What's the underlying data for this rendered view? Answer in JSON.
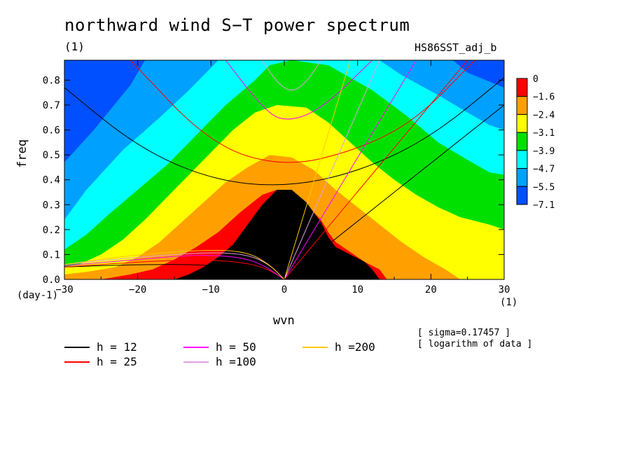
{
  "title": "northward wind S−T power spectrum",
  "title_unit": "(1)",
  "run_id": "HS86SST_adj_b",
  "notes": [
    "[ sigma=0.17457 ]",
    "[ logarithm of data ]"
  ],
  "colors": {
    "fill_levels": [
      "#0050ff",
      "#00a0ff",
      "#00ffff",
      "#00e000",
      "#ffff00",
      "#ffa000",
      "#ff0000"
    ],
    "h12": "#000000",
    "h25": "#ff0000",
    "h50": "#ff00ff",
    "h100": "#e0a0e0",
    "h200": "#ffc800"
  },
  "chart_data": {
    "type": "heatmap",
    "title": "northward wind S−T power spectrum",
    "xlabel": "wvn",
    "ylabel": "freq",
    "x_unit": "(1)",
    "y_unit": "(day-1)",
    "xlim": [
      -30,
      30
    ],
    "ylim": [
      0,
      0.88
    ],
    "x_ticks": [
      -30,
      -20,
      -10,
      0,
      10,
      20,
      30
    ],
    "x_tick_labels": [
      "−30",
      "−20",
      "−10",
      "0",
      "10",
      "20",
      "30"
    ],
    "y_ticks": [
      0.0,
      0.1,
      0.2,
      0.3,
      0.4,
      0.5,
      0.6,
      0.7,
      0.8
    ],
    "y_tick_labels": [
      "0.0",
      "0.1",
      "0.2",
      "0.3",
      "0.4",
      "0.5",
      "0.6",
      "0.7",
      "0.8"
    ],
    "colorbar": {
      "levels": [
        "0",
        "−1.6",
        "−2.4",
        "−3.1",
        "−3.9",
        "−4.7",
        "−5.5",
        "−7.1"
      ],
      "colors": [
        "#ff0000",
        "#ffa000",
        "#ffff00",
        "#00e000",
        "#00ffff",
        "#00a0ff",
        "#0050ff"
      ]
    },
    "field_contours": [
      {
        "level": "−5.5",
        "points": [
          [
            -30,
            0.47
          ],
          [
            -26,
            0.6
          ],
          [
            -21,
            0.78
          ],
          [
            -19,
            0.88
          ],
          [
            23,
            0.88
          ],
          [
            25,
            0.83
          ],
          [
            30,
            0.77
          ]
        ]
      },
      {
        "level": "−4.7",
        "points": [
          [
            -30,
            0.24
          ],
          [
            -27,
            0.36
          ],
          [
            -22,
            0.52
          ],
          [
            -17,
            0.65
          ],
          [
            -13,
            0.76
          ],
          [
            -11,
            0.82
          ],
          [
            -9,
            0.88
          ],
          [
            13,
            0.88
          ],
          [
            16,
            0.82
          ],
          [
            21,
            0.74
          ],
          [
            25,
            0.67
          ],
          [
            28,
            0.62
          ],
          [
            30,
            0.6
          ]
        ]
      },
      {
        "level": "−3.9",
        "points": [
          [
            -30,
            0.12
          ],
          [
            -27,
            0.18
          ],
          [
            -24,
            0.26
          ],
          [
            -20,
            0.36
          ],
          [
            -16,
            0.46
          ],
          [
            -12,
            0.58
          ],
          [
            -8,
            0.7
          ],
          [
            -4,
            0.8
          ],
          [
            -2,
            0.86
          ],
          [
            1,
            0.88
          ],
          [
            6,
            0.86
          ],
          [
            12,
            0.76
          ],
          [
            17,
            0.65
          ],
          [
            21,
            0.55
          ],
          [
            25,
            0.48
          ],
          [
            28,
            0.43
          ],
          [
            30,
            0.42
          ]
        ]
      },
      {
        "level": "−3.1",
        "points": [
          [
            -30,
            0.05
          ],
          [
            -28,
            0.06
          ],
          [
            -25,
            0.1
          ],
          [
            -22,
            0.16
          ],
          [
            -19,
            0.24
          ],
          [
            -16,
            0.33
          ],
          [
            -13,
            0.42
          ],
          [
            -10,
            0.51
          ],
          [
            -7,
            0.6
          ],
          [
            -4,
            0.67
          ],
          [
            -1,
            0.7
          ],
          [
            3,
            0.69
          ],
          [
            6,
            0.63
          ],
          [
            9,
            0.55
          ],
          [
            12,
            0.47
          ],
          [
            15,
            0.4
          ],
          [
            18,
            0.34
          ],
          [
            21,
            0.29
          ],
          [
            24,
            0.25
          ],
          [
            28,
            0.22
          ],
          [
            30,
            0.2
          ]
        ]
      },
      {
        "level": "−2.4",
        "points": [
          [
            -30,
            0.02
          ],
          [
            -27,
            0.03
          ],
          [
            -23,
            0.05
          ],
          [
            -20,
            0.09
          ],
          [
            -17,
            0.15
          ],
          [
            -14,
            0.23
          ],
          [
            -11,
            0.31
          ],
          [
            -8,
            0.39
          ],
          [
            -5,
            0.45
          ],
          [
            -2,
            0.5
          ],
          [
            1,
            0.49
          ],
          [
            4,
            0.44
          ],
          [
            7,
            0.36
          ],
          [
            10,
            0.29
          ],
          [
            13,
            0.22
          ],
          [
            16,
            0.15
          ],
          [
            19,
            0.09
          ],
          [
            22,
            0.04
          ],
          [
            24,
            0.0
          ]
        ]
      },
      {
        "level": "−1.6",
        "points": [
          [
            -25,
            0.0
          ],
          [
            -21,
            0.02
          ],
          [
            -18,
            0.04
          ],
          [
            -15,
            0.08
          ],
          [
            -12,
            0.13
          ],
          [
            -9,
            0.19
          ],
          [
            -6,
            0.27
          ],
          [
            -3,
            0.34
          ],
          [
            -1,
            0.36
          ],
          [
            1,
            0.35
          ],
          [
            3,
            0.3
          ],
          [
            5,
            0.24
          ],
          [
            6,
            0.19
          ],
          [
            7,
            0.15
          ],
          [
            9,
            0.11
          ],
          [
            11,
            0.07
          ],
          [
            13,
            0.04
          ],
          [
            14,
            0.0
          ]
        ]
      },
      {
        "level": "0",
        "points": [
          [
            -15,
            0.0
          ],
          [
            -13,
            0.02
          ],
          [
            -11,
            0.05
          ],
          [
            -9,
            0.09
          ],
          [
            -7,
            0.14
          ],
          [
            -5,
            0.22
          ],
          [
            -3,
            0.3
          ],
          [
            -1,
            0.36
          ],
          [
            1,
            0.36
          ],
          [
            3,
            0.31
          ],
          [
            5,
            0.23
          ],
          [
            6,
            0.17
          ],
          [
            7,
            0.13
          ],
          [
            9,
            0.1
          ],
          [
            11,
            0.07
          ],
          [
            12,
            0.04
          ],
          [
            13,
            0.0
          ]
        ]
      }
    ],
    "series": [
      {
        "name": "h = 12",
        "color": "#000000",
        "equivalent_depth_m": 12
      },
      {
        "name": "h = 25",
        "color": "#ff0000",
        "equivalent_depth_m": 25
      },
      {
        "name": "h = 50",
        "color": "#ff00ff",
        "equivalent_depth_m": 50
      },
      {
        "name": "h =100",
        "color": "#e0a0e0",
        "equivalent_depth_m": 100
      },
      {
        "name": "h =200",
        "color": "#ffc800",
        "equivalent_depth_m": 200
      }
    ],
    "dispersion_curves": [
      {
        "series": "h = 12",
        "kind": "wig",
        "points": [
          [
            -30,
            0.77
          ],
          [
            -20,
            0.53
          ],
          [
            -10,
            0.4
          ],
          [
            0,
            0.37
          ],
          [
            10,
            0.43
          ],
          [
            20,
            0.57
          ],
          [
            30,
            0.81
          ]
        ]
      },
      {
        "series": "h = 12",
        "kind": "kelvin",
        "points": [
          [
            0,
            0.0
          ],
          [
            30,
            0.7
          ]
        ]
      },
      {
        "series": "h = 12",
        "kind": "rossby",
        "points": [
          [
            -30,
            0.05
          ],
          [
            -20,
            0.06
          ],
          [
            -12,
            0.06
          ],
          [
            -8,
            0.05
          ],
          [
            -4,
            0.035
          ],
          [
            -2,
            0.02
          ],
          [
            0,
            0.0
          ]
        ]
      },
      {
        "series": "h = 25",
        "kind": "wig",
        "points": [
          [
            -21,
            0.88
          ],
          [
            -10,
            0.54
          ],
          [
            0,
            0.45
          ],
          [
            10,
            0.52
          ],
          [
            18,
            0.64
          ],
          [
            26,
            0.88
          ]
        ]
      },
      {
        "series": "h = 25",
        "kind": "kelvin",
        "points": [
          [
            0,
            0.0
          ],
          [
            25,
            0.88
          ]
        ]
      },
      {
        "series": "h = 25",
        "kind": "rossby",
        "points": [
          [
            -30,
            0.05
          ],
          [
            -20,
            0.07
          ],
          [
            -12,
            0.08
          ],
          [
            -6,
            0.07
          ],
          [
            -3,
            0.05
          ],
          [
            -1,
            0.02
          ],
          [
            0,
            0.0
          ]
        ]
      },
      {
        "series": "h = 50",
        "kind": "wig",
        "points": [
          [
            -8,
            0.88
          ],
          [
            -3,
            0.69
          ],
          [
            0,
            0.63
          ],
          [
            5,
            0.68
          ],
          [
            12,
            0.88
          ]
        ]
      },
      {
        "series": "h = 50",
        "kind": "kelvin",
        "points": [
          [
            0,
            0.0
          ],
          [
            18,
            0.88
          ]
        ]
      },
      {
        "series": "h = 50",
        "kind": "rossby",
        "points": [
          [
            -30,
            0.055
          ],
          [
            -20,
            0.08
          ],
          [
            -12,
            0.1
          ],
          [
            -6,
            0.09
          ],
          [
            -3,
            0.06
          ],
          [
            -1,
            0.02
          ],
          [
            0,
            0.0
          ]
        ]
      },
      {
        "series": "h =100",
        "kind": "wig",
        "points": [
          [
            -3,
            0.88
          ],
          [
            -1,
            0.79
          ],
          [
            1,
            0.75
          ],
          [
            3,
            0.79
          ],
          [
            5,
            0.88
          ]
        ]
      },
      {
        "series": "h =100",
        "kind": "kelvin",
        "points": [
          [
            0,
            0.0
          ],
          [
            13,
            0.88
          ]
        ]
      },
      {
        "series": "h =100",
        "kind": "rossby",
        "points": [
          [
            -30,
            0.06
          ],
          [
            -20,
            0.09
          ],
          [
            -10,
            0.11
          ],
          [
            -5,
            0.1
          ],
          [
            -2,
            0.06
          ],
          [
            0,
            0.0
          ]
        ]
      },
      {
        "series": "h =200",
        "kind": "kelvin",
        "points": [
          [
            0,
            0.0
          ],
          [
            9,
            0.88
          ]
        ]
      },
      {
        "series": "h =200",
        "kind": "rossby",
        "points": [
          [
            -30,
            0.06
          ],
          [
            -20,
            0.1
          ],
          [
            -10,
            0.12
          ],
          [
            -5,
            0.11
          ],
          [
            -2,
            0.06
          ],
          [
            0,
            0.0
          ]
        ]
      }
    ]
  }
}
